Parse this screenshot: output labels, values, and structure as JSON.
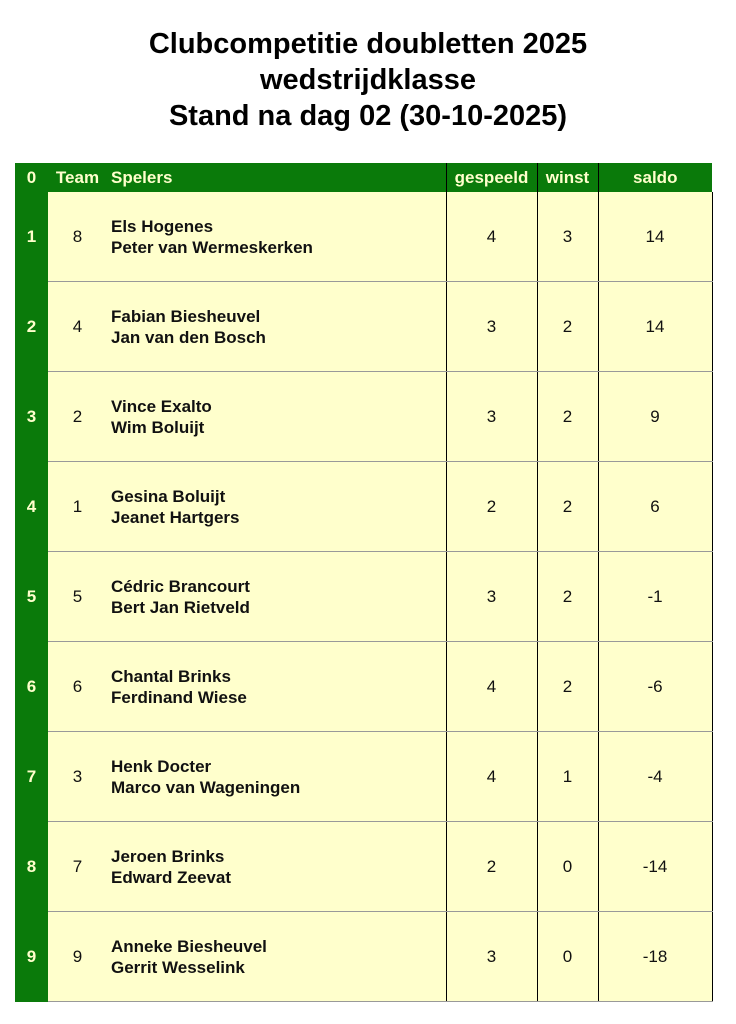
{
  "title": {
    "line1": "Clubcompetitie doubletten 2025",
    "line2": "wedstrijdklasse",
    "line3": "Stand na dag 02 (30-10-2025)"
  },
  "headers": {
    "rank": "0",
    "team": "Team",
    "spelers": "Spelers",
    "gespeeld": "gespeeld",
    "winst": "winst",
    "saldo": "saldo"
  },
  "rows": [
    {
      "rank": "1",
      "team": "8",
      "p1": "Els Hogenes",
      "p2": "Peter van Wermeskerken",
      "gespeeld": "4",
      "winst": "3",
      "saldo": "14"
    },
    {
      "rank": "2",
      "team": "4",
      "p1": "Fabian Biesheuvel",
      "p2": "Jan van den Bosch",
      "gespeeld": "3",
      "winst": "2",
      "saldo": "14"
    },
    {
      "rank": "3",
      "team": "2",
      "p1": "Vince Exalto",
      "p2": "Wim Boluijt",
      "gespeeld": "3",
      "winst": "2",
      "saldo": "9"
    },
    {
      "rank": "4",
      "team": "1",
      "p1": "Gesina Boluijt",
      "p2": "Jeanet Hartgers",
      "gespeeld": "2",
      "winst": "2",
      "saldo": "6"
    },
    {
      "rank": "5",
      "team": "5",
      "p1": "Cédric Brancourt",
      "p2": "Bert Jan Rietveld",
      "gespeeld": "3",
      "winst": "2",
      "saldo": "-1"
    },
    {
      "rank": "6",
      "team": "6",
      "p1": "Chantal Brinks",
      "p2": "Ferdinand Wiese",
      "gespeeld": "4",
      "winst": "2",
      "saldo": "-6"
    },
    {
      "rank": "7",
      "team": "3",
      "p1": "Henk Docter",
      "p2": "Marco van Wageningen",
      "gespeeld": "4",
      "winst": "1",
      "saldo": "-4"
    },
    {
      "rank": "8",
      "team": "7",
      "p1": "Jeroen Brinks",
      "p2": "Edward Zeevat",
      "gespeeld": "2",
      "winst": "0",
      "saldo": "-14"
    },
    {
      "rank": "9",
      "team": "9",
      "p1": "Anneke Biesheuvel",
      "p2": "Gerrit Wesselink",
      "gespeeld": "3",
      "winst": "0",
      "saldo": "-18"
    }
  ],
  "colors": {
    "header_bg": "#0a7a0a",
    "header_text": "#ffffcc",
    "cell_bg": "#ffffcc"
  }
}
